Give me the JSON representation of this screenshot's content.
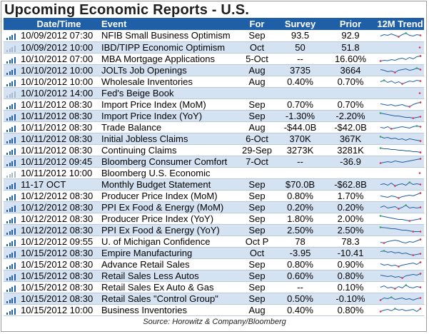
{
  "title": "Upcoming Economic Reports - U.S.",
  "headers": {
    "datetime": "Date/Time",
    "event": "Event",
    "for": "For",
    "survey": "Survey",
    "prior": "Prior",
    "trend": "12M Trend"
  },
  "source": "Source: Horowitz & Company/Bloomberg",
  "colors": {
    "header_bg": "#1f5fa8",
    "row_alt": "#d5e2f2",
    "spark_line": "#1f5fa8",
    "spark_high": "#2fa84f",
    "spark_low": "#e0334c"
  },
  "rows": [
    {
      "datetime": "10/09/2012 07:30",
      "event": "NFIB Small Business Optimism",
      "for": "Sep",
      "survey": "93.5",
      "prior": "92.9",
      "bars": [
        3,
        5,
        7,
        9
      ],
      "trend": [
        0.4,
        0.6,
        0.5,
        0.7,
        0.5,
        0.3,
        0.6,
        0.8,
        0.5,
        0.4,
        0.6,
        0.5
      ]
    },
    {
      "datetime": "10/09/2012 10:00",
      "event": "IBD/TIPP Economic Optimism",
      "for": "Oct",
      "survey": "50",
      "prior": "51.8",
      "bars": [
        3,
        5,
        7,
        9
      ],
      "dim": true,
      "trend": [
        0.5
      ]
    },
    {
      "datetime": "10/10/2012 07:00",
      "event": "MBA Mortgage Applications",
      "for": "5-Oct",
      "survey": "--",
      "prior": "16.60%",
      "bars": [
        3,
        5,
        7,
        9
      ],
      "trend": [
        0.2,
        0.3,
        0.25,
        0.4,
        0.3,
        0.5,
        0.6,
        0.4,
        0.7,
        0.5,
        0.8,
        0.9
      ]
    },
    {
      "datetime": "10/10/2012 10:00",
      "event": "JOLTs Job Openings",
      "for": "Aug",
      "survey": "3735",
      "prior": "3664",
      "bars": [
        3,
        5,
        7,
        9
      ],
      "trend": [
        0.6,
        0.5,
        0.3,
        0.4,
        0.2,
        0.5,
        0.6,
        0.7,
        0.5,
        0.6,
        0.8,
        0.6
      ]
    },
    {
      "datetime": "10/10/2012 10:00",
      "event": "Wholesale Inventories",
      "for": "Aug",
      "survey": "0.40%",
      "prior": "0.70%",
      "bars": [
        3,
        5,
        7,
        9
      ],
      "trend": [
        0.5,
        0.7,
        0.4,
        0.6,
        0.3,
        0.5,
        0.2,
        0.4,
        0.6,
        0.5,
        0.7,
        0.6
      ]
    },
    {
      "datetime": "10/10/2012 14:00",
      "event": "Fed's Beige Book",
      "for": "",
      "survey": "",
      "prior": "",
      "bars": [
        3,
        5,
        7,
        9
      ],
      "dim": true,
      "trend": [
        0.5
      ]
    },
    {
      "datetime": "10/11/2012 08:30",
      "event": "Import Price Index (MoM)",
      "for": "Sep",
      "survey": "0.70%",
      "prior": "0.70%",
      "bars": [
        3,
        5,
        7,
        9
      ],
      "trend": [
        0.6,
        0.5,
        0.4,
        0.5,
        0.3,
        0.4,
        0.5,
        0.3,
        0.2,
        0.5,
        0.7,
        0.8
      ]
    },
    {
      "datetime": "10/11/2012 08:30",
      "event": "Import Price Index (YoY)",
      "for": "Sep",
      "survey": "-1.30%",
      "prior": "-2.20%",
      "bars": [
        3,
        5,
        7,
        9
      ],
      "trend": [
        0.9,
        0.8,
        0.7,
        0.6,
        0.5,
        0.5,
        0.4,
        0.3,
        0.3,
        0.2,
        0.3,
        0.4
      ]
    },
    {
      "datetime": "10/11/2012 08:30",
      "event": "Trade Balance",
      "for": "Aug",
      "survey": "-$44.0B",
      "prior": "-$42.0B",
      "bars": [
        3,
        5,
        7,
        9
      ],
      "trend": [
        0.5,
        0.4,
        0.6,
        0.3,
        0.4,
        0.5,
        0.6,
        0.5,
        0.4,
        0.6,
        0.7,
        0.6
      ]
    },
    {
      "datetime": "10/11/2012 08:30",
      "event": "Initial Jobless Claims",
      "for": "6-Oct",
      "survey": "370K",
      "prior": "367K",
      "bars": [
        3,
        5,
        7,
        9
      ],
      "trend": [
        0.8,
        0.6,
        0.7,
        0.5,
        0.6,
        0.4,
        0.5,
        0.3,
        0.5,
        0.4,
        0.3,
        0.2
      ]
    },
    {
      "datetime": "10/11/2012 08:30",
      "event": "Continuing Claims",
      "for": "29-Sep",
      "survey": "3273K",
      "prior": "3281K",
      "bars": [
        3,
        5,
        7,
        9
      ],
      "trend": [
        0.8,
        0.7,
        0.7,
        0.6,
        0.6,
        0.5,
        0.5,
        0.4,
        0.4,
        0.3,
        0.3,
        0.2
      ]
    },
    {
      "datetime": "10/11/2012 09:45",
      "event": "Bloomberg Consumer Comfort",
      "for": "7-Oct",
      "survey": "--",
      "prior": "-36.9",
      "bars": [
        3,
        5,
        7,
        9
      ],
      "trend": [
        0.3,
        0.4,
        0.5,
        0.4,
        0.6,
        0.5,
        0.4,
        0.5,
        0.6,
        0.7,
        0.8,
        0.9
      ]
    },
    {
      "datetime": "10/11/2012 10:00",
      "event": "Bloomberg U.S. Economic",
      "for": "",
      "survey": "",
      "prior": "",
      "bars": [
        3,
        5,
        7,
        9
      ],
      "dim": true,
      "trend": [
        0.5
      ]
    },
    {
      "datetime": "11-17 OCT",
      "event": "Monthly Budget Statement",
      "for": "Sep",
      "survey": "$70.0B",
      "prior": "-$62.8B",
      "bars": [
        3,
        5,
        7,
        9
      ],
      "trend": [
        0.5,
        0.6,
        0.4,
        0.7,
        0.3,
        0.5,
        0.6,
        0.4,
        0.8,
        0.5,
        0.6,
        0.5
      ]
    },
    {
      "datetime": "10/12/2012 08:30",
      "event": "Producer Price Index (MoM)",
      "for": "Sep",
      "survey": "0.80%",
      "prior": "1.70%",
      "bars": [
        3,
        5,
        7,
        9
      ],
      "trend": [
        0.5,
        0.4,
        0.3,
        0.5,
        0.4,
        0.2,
        0.4,
        0.5,
        0.6,
        0.5,
        0.7,
        0.9
      ]
    },
    {
      "datetime": "10/12/2012 08:30",
      "event": "PPI Ex Food & Energy (MoM)",
      "for": "Sep",
      "survey": "0.20%",
      "prior": "0.20%",
      "bars": [
        3,
        5,
        7,
        9
      ],
      "trend": [
        0.5,
        0.7,
        0.4,
        0.5,
        0.6,
        0.3,
        0.5,
        0.8,
        0.4,
        0.5,
        0.4,
        0.5
      ]
    },
    {
      "datetime": "10/12/2012 08:30",
      "event": "Producer Price Index (YoY)",
      "for": "Sep",
      "survey": "1.80%",
      "prior": "2.00%",
      "bars": [
        3,
        5,
        7,
        9
      ],
      "trend": [
        0.9,
        0.8,
        0.7,
        0.6,
        0.5,
        0.4,
        0.4,
        0.3,
        0.2,
        0.3,
        0.4,
        0.5
      ]
    },
    {
      "datetime": "10/12/2012 08:30",
      "event": "PPI Ex Food & Energy (YoY)",
      "for": "Sep",
      "survey": "2.50%",
      "prior": "2.50%",
      "bars": [
        3,
        5,
        7,
        9
      ],
      "trend": [
        0.9,
        0.85,
        0.8,
        0.7,
        0.7,
        0.6,
        0.5,
        0.5,
        0.4,
        0.3,
        0.3,
        0.3
      ]
    },
    {
      "datetime": "10/12/2012 09:55",
      "event": "U. of Michigan Confidence",
      "for": "Oct P",
      "survey": "78",
      "prior": "78.3",
      "bars": [
        3,
        5,
        7,
        9
      ],
      "trend": [
        0.4,
        0.3,
        0.5,
        0.6,
        0.7,
        0.6,
        0.4,
        0.3,
        0.5,
        0.4,
        0.6,
        0.8
      ]
    },
    {
      "datetime": "10/15/2012 08:30",
      "event": "Empire Manufacturing",
      "for": "Oct",
      "survey": "-3.95",
      "prior": "-10.41",
      "bars": [
        3,
        5,
        7,
        9
      ],
      "trend": [
        0.7,
        0.8,
        0.6,
        0.7,
        0.5,
        0.6,
        0.4,
        0.5,
        0.3,
        0.2,
        0.3,
        0.4
      ]
    },
    {
      "datetime": "10/15/2012 08:30",
      "event": "Advance Retail Sales",
      "for": "Sep",
      "survey": "0.80%",
      "prior": "0.90%",
      "bars": [
        3,
        5,
        7,
        9
      ],
      "trend": [
        0.6,
        0.4,
        0.5,
        0.3,
        0.4,
        0.2,
        0.4,
        0.5,
        0.6,
        0.7,
        0.5,
        0.8
      ]
    },
    {
      "datetime": "10/15/2012 08:30",
      "event": "Retail Sales Less Autos",
      "for": "Sep",
      "survey": "0.60%",
      "prior": "0.80%",
      "bars": [
        3,
        5,
        7,
        9
      ],
      "trend": [
        0.6,
        0.5,
        0.4,
        0.5,
        0.3,
        0.4,
        0.2,
        0.5,
        0.6,
        0.7,
        0.6,
        0.8
      ]
    },
    {
      "datetime": "10/15/2012 08:30",
      "event": "Retail Sales Ex Auto & Gas",
      "for": "Sep",
      "survey": "--",
      "prior": "0.10%",
      "bars": [
        3,
        5,
        7,
        9
      ],
      "trend": [
        0.5,
        0.7,
        0.4,
        0.5,
        0.3,
        0.6,
        0.4,
        0.8,
        0.5,
        0.4,
        0.6,
        0.5
      ]
    },
    {
      "datetime": "10/15/2012 08:30",
      "event": "Retail Sales \"Control Group\"",
      "for": "Sep",
      "survey": "0.50%",
      "prior": "-0.10%",
      "bars": [
        3,
        5,
        7,
        9
      ],
      "trend": [
        0.3,
        0.6,
        0.5,
        0.7,
        0.4,
        0.5,
        0.6,
        0.4,
        0.5,
        0.3,
        0.5,
        0.6
      ]
    },
    {
      "datetime": "10/15/2012 10:00",
      "event": "Business Inventories",
      "for": "Aug",
      "survey": "0.40%",
      "prior": "0.80%",
      "bars": [
        3,
        5,
        7,
        9
      ],
      "trend": [
        0.3,
        0.5,
        0.6,
        0.4,
        0.7,
        0.5,
        0.6,
        0.4,
        0.5,
        0.6,
        0.3,
        0.7
      ]
    }
  ]
}
